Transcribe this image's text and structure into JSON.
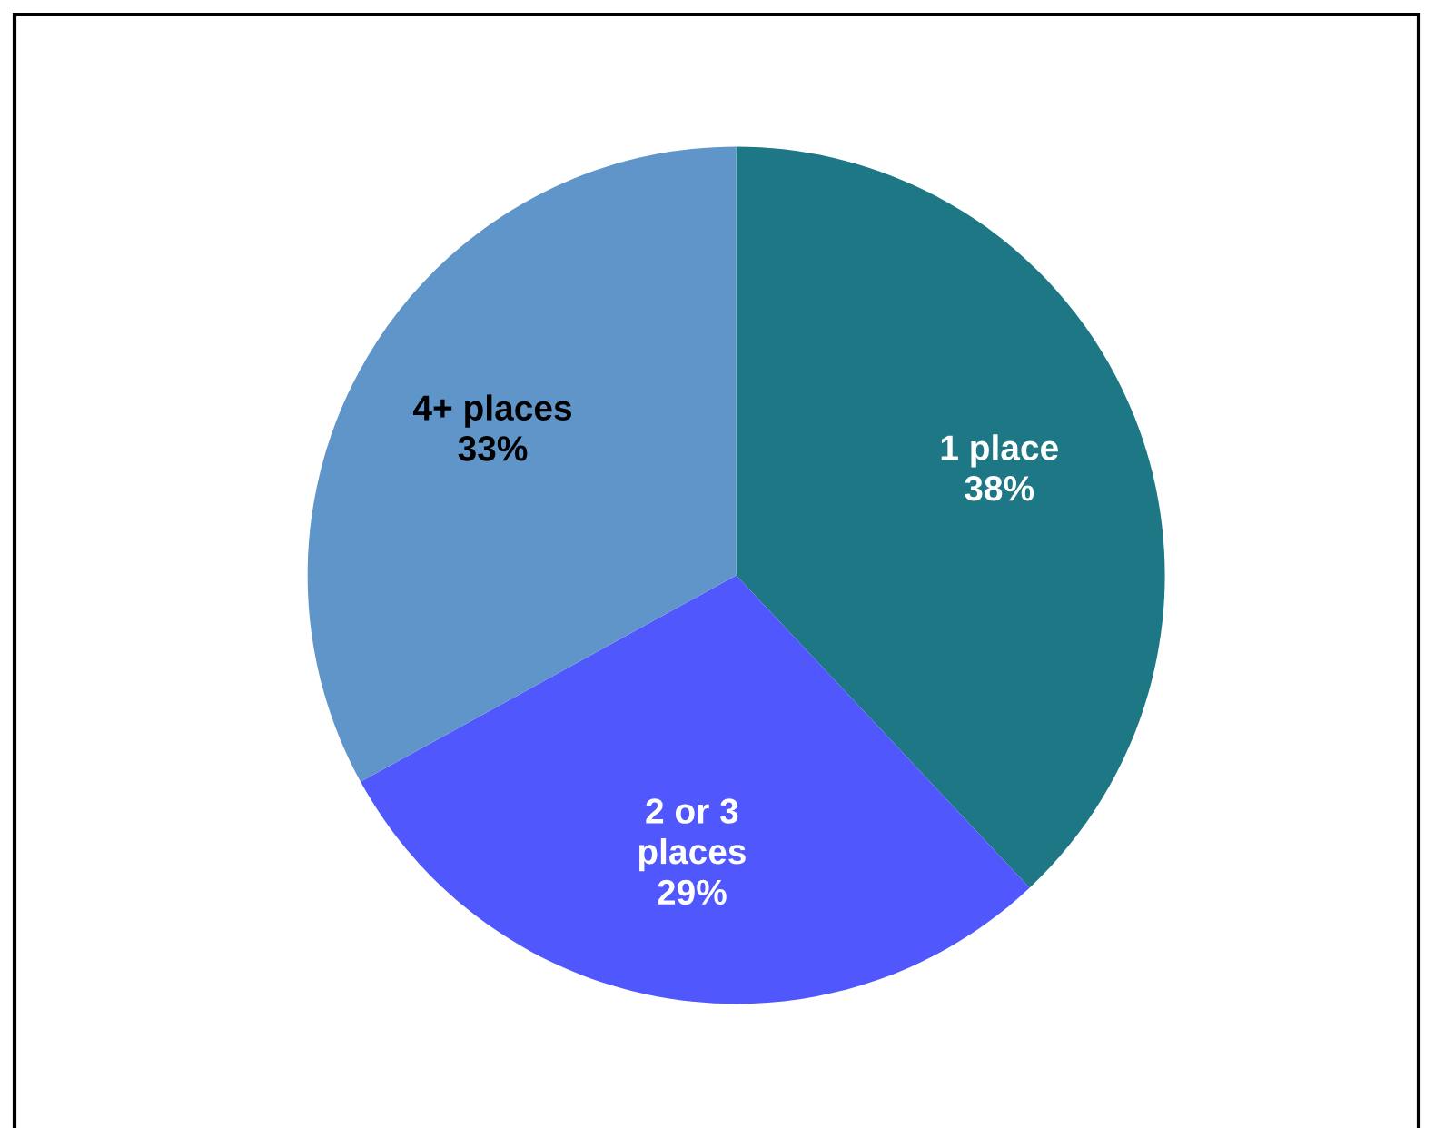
{
  "chart_data": {
    "type": "pie",
    "categories": [
      "1 place",
      "2 or 3\nplaces",
      "4+ places"
    ],
    "values": [
      38,
      29,
      33
    ],
    "colors": [
      "#1d7784",
      "#4f57fd",
      "#6095c9"
    ],
    "value_labels": [
      "38%",
      "29%",
      "33%"
    ]
  }
}
